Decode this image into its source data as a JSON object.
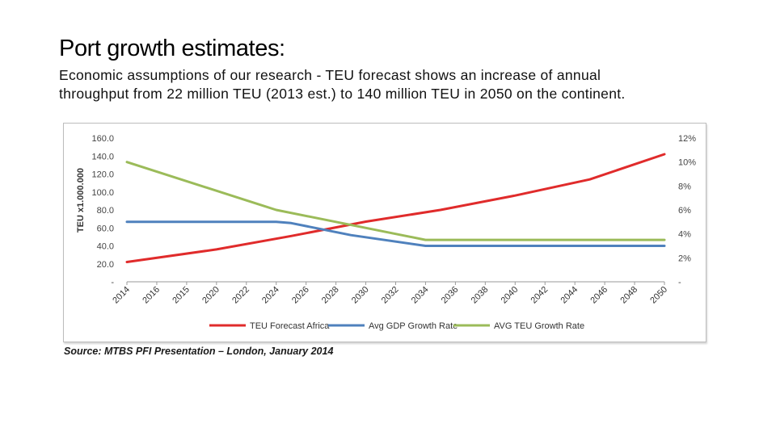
{
  "slide": {
    "title": "Port growth estimates:",
    "subtitle_line1": "Economic assumptions of our research - TEU forecast shows an increase of annual",
    "subtitle_line2": "throughput from 22 million TEU (2013 est.) to 140 million TEU in 2050 on the continent.",
    "source": "Source: MTBS PFI Presentation – London, January 2014"
  },
  "chart_data": {
    "type": "line",
    "title": "",
    "xlabel": "",
    "ylabel": "TEU x1.000.000",
    "y2label": "",
    "categories": [
      "2014",
      "2016",
      "2015",
      "2020",
      "2022",
      "2024",
      "2026",
      "2028",
      "2030",
      "2032",
      "2034",
      "2036",
      "2038",
      "2040",
      "2042",
      "2044",
      "2046",
      "2048",
      "2050"
    ],
    "x": [
      2014,
      2050
    ],
    "ylim": [
      0,
      160
    ],
    "y_ticks": [
      "160.0",
      "140.0",
      "120.0",
      "100.0",
      "80.0",
      "60.0",
      "40.0",
      "20.0",
      "-"
    ],
    "y2lim": [
      0,
      12
    ],
    "y2_ticks": [
      "12%",
      "10%",
      "8%",
      "6%",
      "4%",
      "2%",
      "-"
    ],
    "grid": "none",
    "legend_position": "bottom",
    "series": [
      {
        "name": "TEU Forecast Africa",
        "axis": "left",
        "color": "#e02b2b",
        "points": [
          [
            2014,
            22
          ],
          [
            2020,
            36
          ],
          [
            2025,
            51
          ],
          [
            2030,
            67
          ],
          [
            2035,
            80
          ],
          [
            2040,
            96
          ],
          [
            2045,
            114
          ],
          [
            2050,
            142
          ]
        ]
      },
      {
        "name": "Avg GDP Growth Rate",
        "axis": "right",
        "color": "#4f81bd",
        "points": [
          [
            2014,
            5.0
          ],
          [
            2024,
            5.0
          ],
          [
            2025,
            4.9
          ],
          [
            2029,
            3.9
          ],
          [
            2034,
            3.0
          ],
          [
            2050,
            3.0
          ]
        ]
      },
      {
        "name": "AVG TEU Growth Rate",
        "axis": "right",
        "color": "#9bbb59",
        "points": [
          [
            2014,
            10.0
          ],
          [
            2024,
            6.0
          ],
          [
            2034,
            3.5
          ],
          [
            2050,
            3.5
          ]
        ]
      }
    ]
  }
}
